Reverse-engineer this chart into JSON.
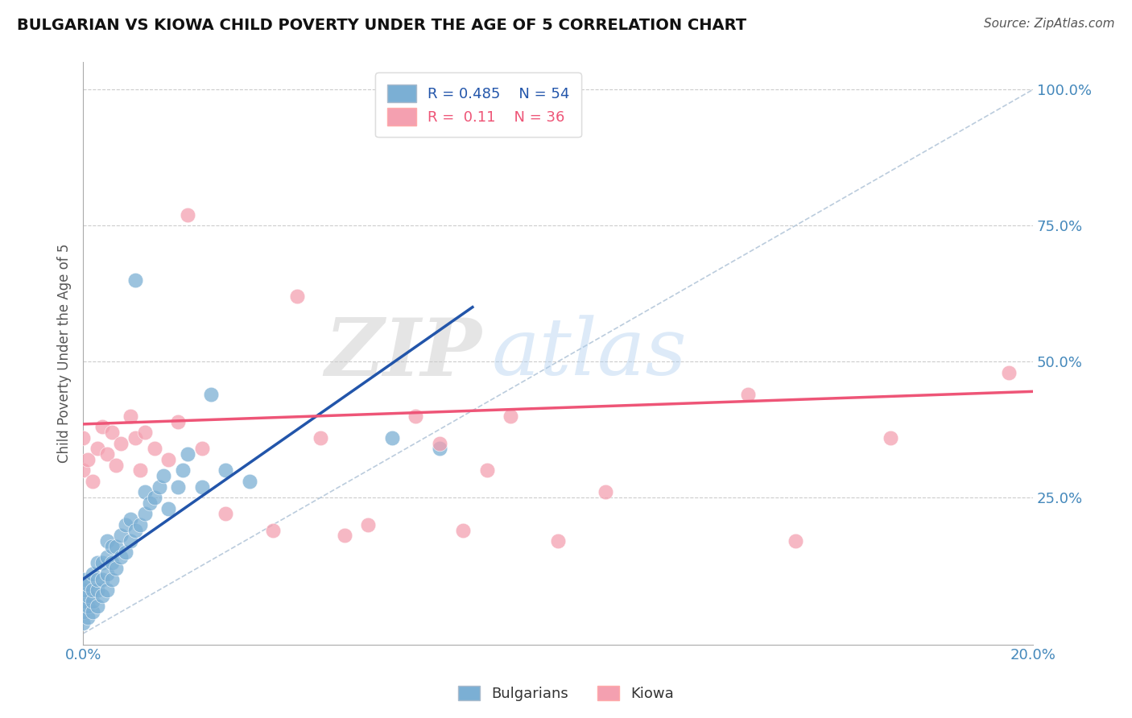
{
  "title": "BULGARIAN VS KIOWA CHILD POVERTY UNDER THE AGE OF 5 CORRELATION CHART",
  "source": "Source: ZipAtlas.com",
  "ylabel": "Child Poverty Under the Age of 5",
  "xlim": [
    0.0,
    0.2
  ],
  "ylim": [
    -0.02,
    1.05
  ],
  "x_ticks": [
    0.0,
    0.02,
    0.04,
    0.06,
    0.08,
    0.1,
    0.12,
    0.14,
    0.16,
    0.18,
    0.2
  ],
  "x_tick_labels": [
    "0.0%",
    "",
    "",
    "",
    "",
    "",
    "",
    "",
    "",
    "",
    "20.0%"
  ],
  "y_ticks": [
    0.0,
    0.25,
    0.5,
    0.75,
    1.0
  ],
  "y_tick_labels": [
    "",
    "25.0%",
    "50.0%",
    "75.0%",
    "100.0%"
  ],
  "bulgarian_R": 0.485,
  "bulgarian_N": 54,
  "kiowa_R": 0.11,
  "kiowa_N": 36,
  "bulgarian_color": "#7BAFD4",
  "kiowa_color": "#F4A0B0",
  "trendline_color_blue": "#2255AA",
  "trendline_color_pink": "#EE5577",
  "diagonal_color": "#BBCCDD",
  "watermark_zip": "ZIP",
  "watermark_atlas": "atlas",
  "bulgarian_trend_x0": 0.0,
  "bulgarian_trend_y0": 0.1,
  "bulgarian_trend_x1": 0.082,
  "bulgarian_trend_y1": 0.6,
  "kiowa_trend_x0": 0.0,
  "kiowa_trend_y0": 0.385,
  "kiowa_trend_x1": 0.2,
  "kiowa_trend_y1": 0.445,
  "bulgarian_points_x": [
    0.0,
    0.0,
    0.0,
    0.0,
    0.0,
    0.001,
    0.001,
    0.001,
    0.001,
    0.002,
    0.002,
    0.002,
    0.002,
    0.003,
    0.003,
    0.003,
    0.003,
    0.004,
    0.004,
    0.004,
    0.005,
    0.005,
    0.005,
    0.005,
    0.006,
    0.006,
    0.006,
    0.007,
    0.007,
    0.008,
    0.008,
    0.009,
    0.009,
    0.01,
    0.01,
    0.011,
    0.011,
    0.012,
    0.013,
    0.013,
    0.014,
    0.015,
    0.016,
    0.017,
    0.018,
    0.02,
    0.021,
    0.022,
    0.025,
    0.027,
    0.03,
    0.035,
    0.065,
    0.075
  ],
  "bulgarian_points_y": [
    0.02,
    0.04,
    0.06,
    0.08,
    0.1,
    0.03,
    0.05,
    0.07,
    0.09,
    0.04,
    0.06,
    0.08,
    0.11,
    0.05,
    0.08,
    0.1,
    0.13,
    0.07,
    0.1,
    0.13,
    0.08,
    0.11,
    0.14,
    0.17,
    0.1,
    0.13,
    0.16,
    0.12,
    0.16,
    0.14,
    0.18,
    0.15,
    0.2,
    0.17,
    0.21,
    0.19,
    0.65,
    0.2,
    0.22,
    0.26,
    0.24,
    0.25,
    0.27,
    0.29,
    0.23,
    0.27,
    0.3,
    0.33,
    0.27,
    0.44,
    0.3,
    0.28,
    0.36,
    0.34
  ],
  "kiowa_points_x": [
    0.0,
    0.0,
    0.001,
    0.002,
    0.003,
    0.004,
    0.005,
    0.006,
    0.007,
    0.008,
    0.01,
    0.011,
    0.012,
    0.013,
    0.015,
    0.018,
    0.02,
    0.022,
    0.025,
    0.03,
    0.04,
    0.045,
    0.05,
    0.055,
    0.06,
    0.07,
    0.075,
    0.08,
    0.085,
    0.09,
    0.1,
    0.11,
    0.14,
    0.15,
    0.17,
    0.195
  ],
  "kiowa_points_y": [
    0.3,
    0.36,
    0.32,
    0.28,
    0.34,
    0.38,
    0.33,
    0.37,
    0.31,
    0.35,
    0.4,
    0.36,
    0.3,
    0.37,
    0.34,
    0.32,
    0.39,
    0.77,
    0.34,
    0.22,
    0.19,
    0.62,
    0.36,
    0.18,
    0.2,
    0.4,
    0.35,
    0.19,
    0.3,
    0.4,
    0.17,
    0.26,
    0.44,
    0.17,
    0.36,
    0.48
  ]
}
